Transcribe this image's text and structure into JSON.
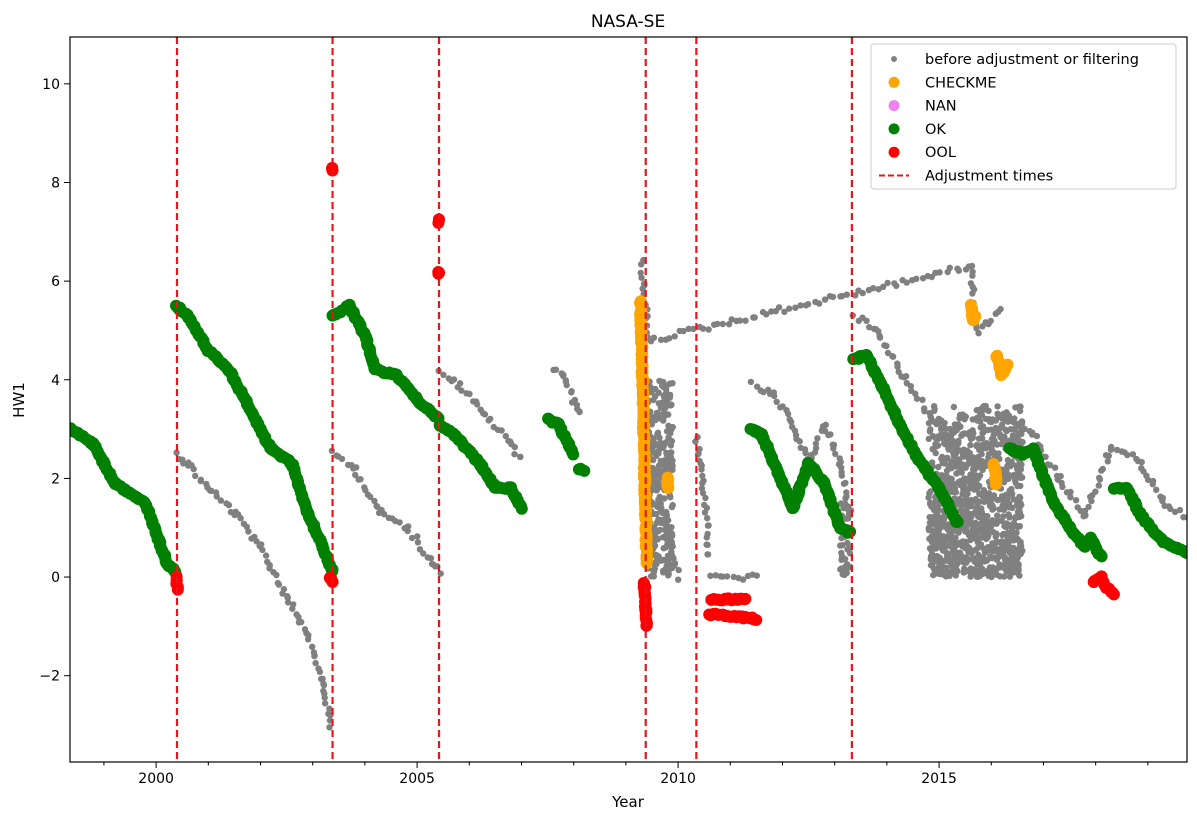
{
  "chart_data": {
    "type": "scatter",
    "title": "NASA-SE",
    "xlabel": "Year",
    "ylabel": "HW1",
    "xlim": [
      1998.35,
      2019.75
    ],
    "ylim": [
      -3.75,
      10.95
    ],
    "x_ticks": [
      2000,
      2005,
      2010,
      2015
    ],
    "y_ticks": [
      -2,
      0,
      2,
      4,
      6,
      8,
      10
    ],
    "grid": false,
    "legend_position": "top-right",
    "colors": {
      "before": "#808080",
      "checkme": "#ffa500",
      "nan": "#ee82ee",
      "ok": "#008000",
      "ool": "#ff0000",
      "adjust": "#e8161b"
    },
    "legend": [
      {
        "label": "before adjustment or filtering",
        "marker": "small-dot",
        "color": "#808080"
      },
      {
        "label": "CHECKME",
        "marker": "dot",
        "color": "#ffa500"
      },
      {
        "label": "NAN",
        "marker": "dot",
        "color": "#ee82ee"
      },
      {
        "label": "OK",
        "marker": "dot",
        "color": "#008000"
      },
      {
        "label": "OOL",
        "marker": "dot",
        "color": "#ff0000"
      },
      {
        "label": "Adjustment times",
        "marker": "dashed-line",
        "color": "#e8161b"
      }
    ],
    "adjustment_times": [
      2000.4,
      2003.38,
      2005.42,
      2009.38,
      2010.35,
      2013.33
    ],
    "series": [
      {
        "name": "before adjustment or filtering",
        "marker": "small-dot",
        "color": "#808080",
        "segments": [
          {
            "x": [
              2000.38,
              2000.6,
              2001.0,
              2001.5,
              2002.0,
              2002.5,
              2002.9,
              2003.2,
              2003.35
            ],
            "y": [
              2.5,
              2.3,
              1.8,
              1.3,
              0.6,
              -0.4,
              -1.1,
              -2.2,
              -3.0
            ]
          },
          {
            "x": [
              2003.38,
              2003.8,
              2004.3,
              2004.8,
              2005.3,
              2005.42
            ],
            "y": [
              2.5,
              2.2,
              1.3,
              1.0,
              0.3,
              0.1
            ]
          },
          {
            "x": [
              2005.45,
              2005.8,
              2006.3,
              2006.8,
              2007.0
            ],
            "y": [
              4.2,
              3.9,
              3.3,
              2.7,
              2.4
            ]
          },
          {
            "x": [
              2007.6,
              2007.8,
              2008.0,
              2008.1
            ],
            "y": [
              4.25,
              4.1,
              3.6,
              3.3
            ]
          },
          {
            "x": [
              2009.38,
              2009.55,
              2009.8,
              2010.0
            ],
            "y": [
              3.0,
              2.0,
              1.0,
              0.0
            ]
          },
          {
            "x": [
              2010.35,
              2010.45,
              2010.6
            ],
            "y": [
              2.8,
              2.2,
              0.4
            ]
          },
          {
            "x": [
              2010.6,
              2011.5
            ],
            "y": [
              0.0,
              0.0
            ]
          },
          {
            "x": [
              2011.4,
              2011.8,
              2012.2,
              2012.5,
              2012.8,
              2013.1,
              2013.3
            ],
            "y": [
              3.9,
              3.7,
              3.1,
              2.3,
              3.1,
              2.3,
              1.3
            ]
          },
          {
            "x": [
              2013.35,
              2013.8,
              2014.3,
              2014.8,
              2015.3,
              2015.8,
              2016.3,
              2016.8,
              2017.3,
              2017.8,
              2018.3,
              2018.8,
              2019.3,
              2019.75
            ],
            "y": [
              5.3,
              5.0,
              4.1,
              3.3,
              2.6,
              2.2,
              3.3,
              2.9,
              2.0,
              1.2,
              2.6,
              2.4,
              1.5,
              1.2
            ]
          },
          {
            "x": [
              2009.3,
              2009.45,
              2015.6,
              2015.75,
              2016.2
            ],
            "y": [
              6.4,
              4.8,
              6.3,
              5.0,
              5.4
            ]
          }
        ],
        "spread_ranges": [
          {
            "x": [
              2009.4,
              2009.9
            ],
            "y": [
              0.0,
              4.0
            ]
          },
          {
            "x": [
              2013.1,
              2013.3
            ],
            "y": [
              0.0,
              1.5
            ]
          },
          {
            "x": [
              2014.8,
              2016.6
            ],
            "y": [
              0.0,
              3.5
            ]
          }
        ]
      },
      {
        "name": "CHECKME",
        "marker": "dot",
        "color": "#ffa500",
        "segments": [
          {
            "x": [
              2009.28,
              2009.32,
              2009.36,
              2009.4
            ],
            "y": [
              5.6,
              4.0,
              2.0,
              0.3
            ]
          },
          {
            "x": [
              2009.8,
              2009.8
            ],
            "y": [
              2.0,
              1.8
            ]
          },
          {
            "x": [
              2015.6,
              2015.65,
              2015.7
            ],
            "y": [
              5.5,
              5.2,
              5.3
            ]
          },
          {
            "x": [
              2016.1,
              2016.2,
              2016.3
            ],
            "y": [
              4.5,
              4.1,
              4.3
            ]
          },
          {
            "x": [
              2016.05,
              2016.1
            ],
            "y": [
              2.3,
              1.9
            ]
          }
        ]
      },
      {
        "name": "NAN",
        "marker": "dot",
        "color": "#ee82ee",
        "segments": []
      },
      {
        "name": "OK",
        "marker": "dot",
        "color": "#008000",
        "segments": [
          {
            "x": [
              1998.35,
              1998.8,
              1999.2,
              1999.5,
              1999.8,
              2000.0,
              2000.2,
              2000.38
            ],
            "y": [
              3.0,
              2.7,
              1.9,
              1.7,
              1.5,
              0.9,
              0.3,
              0.1
            ]
          },
          {
            "x": [
              2000.38,
              2000.6,
              2001.0,
              2001.4,
              2001.8,
              2002.2,
              2002.6,
              2002.9,
              2003.2,
              2003.38
            ],
            "y": [
              5.5,
              5.3,
              4.6,
              4.2,
              3.4,
              2.6,
              2.3,
              1.3,
              0.6,
              0.1
            ]
          },
          {
            "x": [
              2003.38,
              2003.7,
              2004.0,
              2004.2,
              2004.6,
              2005.0,
              2005.4
            ],
            "y": [
              5.3,
              5.5,
              4.9,
              4.2,
              4.1,
              3.6,
              3.2
            ]
          },
          {
            "x": [
              2005.42,
              2005.8,
              2006.2,
              2006.5,
              2006.8,
              2007.0
            ],
            "y": [
              3.1,
              2.8,
              2.3,
              1.8,
              1.8,
              1.4
            ]
          },
          {
            "x": [
              2007.5,
              2007.7,
              2007.9,
              2008.0
            ],
            "y": [
              3.2,
              3.1,
              2.7,
              2.5
            ]
          },
          {
            "x": [
              2008.1,
              2008.2
            ],
            "y": [
              2.2,
              2.15
            ]
          },
          {
            "x": [
              2011.4,
              2011.6,
              2011.8,
              2012.0,
              2012.2,
              2012.5,
              2012.8,
              2013.1,
              2013.3
            ],
            "y": [
              3.0,
              2.9,
              2.4,
              1.9,
              1.4,
              2.3,
              1.9,
              1.0,
              0.9
            ]
          },
          {
            "x": [
              2013.35,
              2013.6,
              2013.9,
              2014.2,
              2014.6,
              2015.0,
              2015.35
            ],
            "y": [
              4.4,
              4.5,
              3.9,
              3.2,
              2.4,
              1.8,
              1.1
            ]
          },
          {
            "x": [
              2016.35,
              2016.6,
              2016.8,
              2017.2,
              2017.5,
              2017.8
            ],
            "y": [
              2.6,
              2.5,
              2.6,
              1.5,
              1.0,
              0.6
            ]
          },
          {
            "x": [
              2017.9,
              2018.1
            ],
            "y": [
              0.8,
              0.4
            ]
          },
          {
            "x": [
              2018.35,
              2018.6,
              2018.9,
              2019.3,
              2019.75
            ],
            "y": [
              1.8,
              1.8,
              1.2,
              0.7,
              0.5
            ]
          }
        ]
      },
      {
        "name": "OOL",
        "marker": "dot",
        "color": "#ff0000",
        "segments": [
          {
            "x": [
              2000.38,
              2000.42
            ],
            "y": [
              0.0,
              -0.25
            ]
          },
          {
            "x": [
              2003.38,
              2003.38
            ],
            "y": [
              8.25,
              8.3
            ]
          },
          {
            "x": [
              2003.33,
              2003.38
            ],
            "y": [
              0.0,
              -0.1
            ]
          },
          {
            "x": [
              2005.42,
              2005.42
            ],
            "y": [
              7.2,
              7.25
            ]
          },
          {
            "x": [
              2005.42,
              2005.42
            ],
            "y": [
              6.15,
              6.2
            ]
          },
          {
            "x": [
              2009.35,
              2009.38,
              2009.4
            ],
            "y": [
              -0.1,
              -0.6,
              -1.0
            ]
          },
          {
            "x": [
              2010.6,
              2011.5
            ],
            "y": [
              -0.75,
              -0.85
            ]
          },
          {
            "x": [
              2010.65,
              2011.3
            ],
            "y": [
              -0.45,
              -0.45
            ]
          },
          {
            "x": [
              2017.95,
              2018.1,
              2018.2,
              2018.35
            ],
            "y": [
              -0.1,
              0.0,
              -0.2,
              -0.35
            ]
          }
        ]
      }
    ]
  }
}
